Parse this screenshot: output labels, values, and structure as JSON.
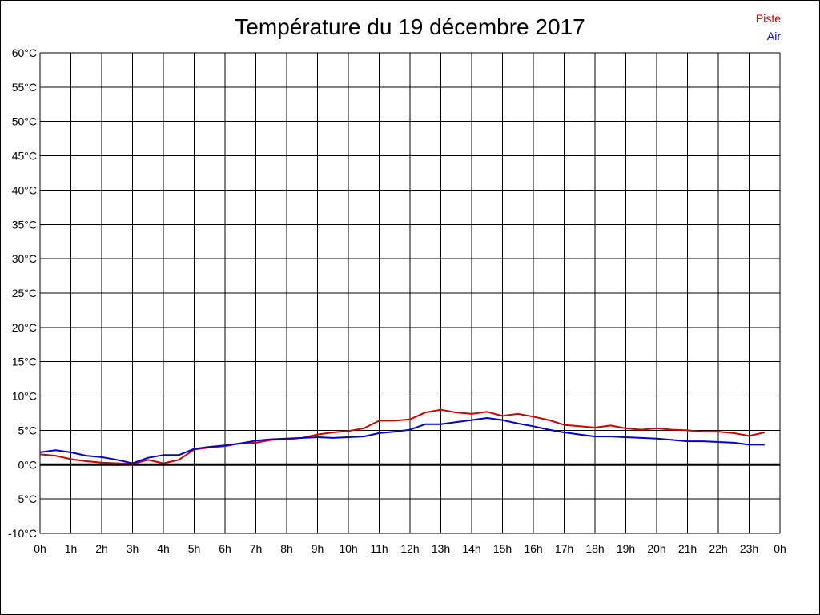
{
  "chart_data": {
    "type": "line",
    "title": "Température du 19 décembre 2017",
    "x_tick_labels": [
      "0h",
      "1h",
      "2h",
      "3h",
      "4h",
      "5h",
      "6h",
      "7h",
      "8h",
      "9h",
      "10h",
      "11h",
      "12h",
      "13h",
      "14h",
      "15h",
      "16h",
      "17h",
      "18h",
      "19h",
      "20h",
      "21h",
      "22h",
      "23h",
      "0h"
    ],
    "y_tick_labels": [
      "60°C",
      "55°C",
      "50°C",
      "45°C",
      "40°C",
      "35°C",
      "30°C",
      "25°C",
      "20°C",
      "15°C",
      "10°C",
      "5°C",
      "0°C",
      "-5°C",
      "-10°C"
    ],
    "xlim": [
      0,
      24
    ],
    "ylim": [
      -10,
      60
    ],
    "grid": true,
    "legend_position": "top-right",
    "x": [
      0,
      0.5,
      1,
      1.5,
      2,
      2.5,
      3,
      3.5,
      4,
      4.5,
      5,
      5.5,
      6,
      6.5,
      7,
      7.5,
      8,
      8.5,
      9,
      9.5,
      10,
      10.5,
      11,
      11.5,
      12,
      12.5,
      13,
      13.5,
      14,
      14.5,
      15,
      15.5,
      16,
      16.5,
      17,
      17.5,
      18,
      18.5,
      19,
      19.5,
      20,
      20.5,
      21,
      21.5,
      22,
      22.5,
      23,
      23.5
    ],
    "series": [
      {
        "name": "Piste",
        "color": "#cc0000",
        "values": [
          1.5,
          1.3,
          0.8,
          0.5,
          0.3,
          0.2,
          0.1,
          0.7,
          0.2,
          0.7,
          2.2,
          2.5,
          2.7,
          3.1,
          3.2,
          3.6,
          3.7,
          3.9,
          4.4,
          4.7,
          4.9,
          5.3,
          6.4,
          6.4,
          6.6,
          7.6,
          8.0,
          7.6,
          7.4,
          7.7,
          7.1,
          7.4,
          7.0,
          6.5,
          5.8,
          5.6,
          5.4,
          5.7,
          5.3,
          5.1,
          5.3,
          5.1,
          5.0,
          4.8,
          4.8,
          4.6,
          4.2,
          4.7
        ]
      },
      {
        "name": "Air",
        "color": "#0000cc",
        "values": [
          1.8,
          2.1,
          1.8,
          1.3,
          1.1,
          0.7,
          0.2,
          1.0,
          1.4,
          1.4,
          2.3,
          2.6,
          2.8,
          3.1,
          3.5,
          3.7,
          3.8,
          3.9,
          4.0,
          3.9,
          4.0,
          4.1,
          4.6,
          4.8,
          5.1,
          5.9,
          5.9,
          6.2,
          6.5,
          6.8,
          6.5,
          6.0,
          5.6,
          5.1,
          4.7,
          4.4,
          4.1,
          4.1,
          4.0,
          3.9,
          3.8,
          3.6,
          3.4,
          3.4,
          3.3,
          3.2,
          2.9,
          2.9
        ]
      }
    ]
  }
}
